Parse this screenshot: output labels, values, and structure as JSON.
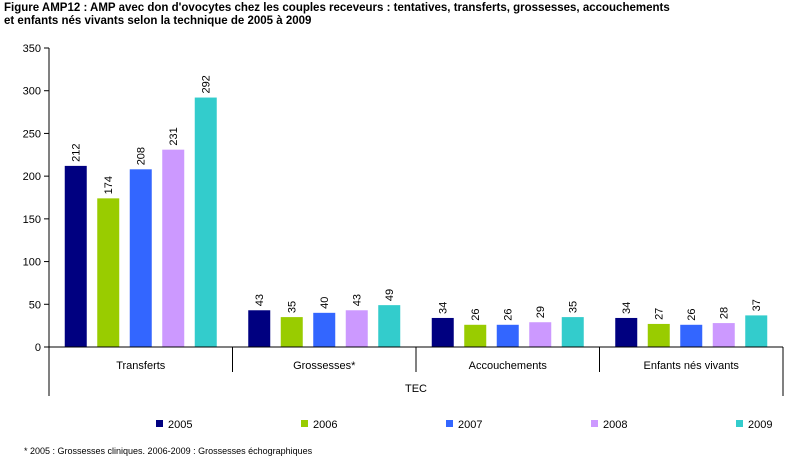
{
  "chart_data": {
    "type": "bar",
    "title": "Figure AMP12 : AMP avec don d'ovocytes chez les couples receveurs : tentatives, transferts, grossesses, accouchements\net enfants nés vivants selon la technique de 2005 à 2009",
    "xlabel": "TEC",
    "ylabel": "",
    "ylim": [
      0,
      350
    ],
    "yticks": [
      0,
      50,
      100,
      150,
      200,
      250,
      300,
      350
    ],
    "categories": [
      "Transferts",
      "Grossesses*",
      "Accouchements",
      "Enfants nés vivants"
    ],
    "series": [
      {
        "name": "2005",
        "color": "#000080",
        "values": [
          212,
          43,
          34,
          34
        ]
      },
      {
        "name": "2006",
        "color": "#99cc00",
        "values": [
          174,
          35,
          26,
          27
        ]
      },
      {
        "name": "2007",
        "color": "#3366ff",
        "values": [
          208,
          40,
          26,
          26
        ]
      },
      {
        "name": "2008",
        "color": "#cc99ff",
        "values": [
          231,
          43,
          29,
          28
        ]
      },
      {
        "name": "2009",
        "color": "#33cccc",
        "values": [
          292,
          49,
          35,
          37
        ]
      }
    ],
    "grid": false,
    "legend": "bottom",
    "footnote": "* 2005 : Grossesses cliniques. 2006-2009 : Grossesses échographiques"
  }
}
